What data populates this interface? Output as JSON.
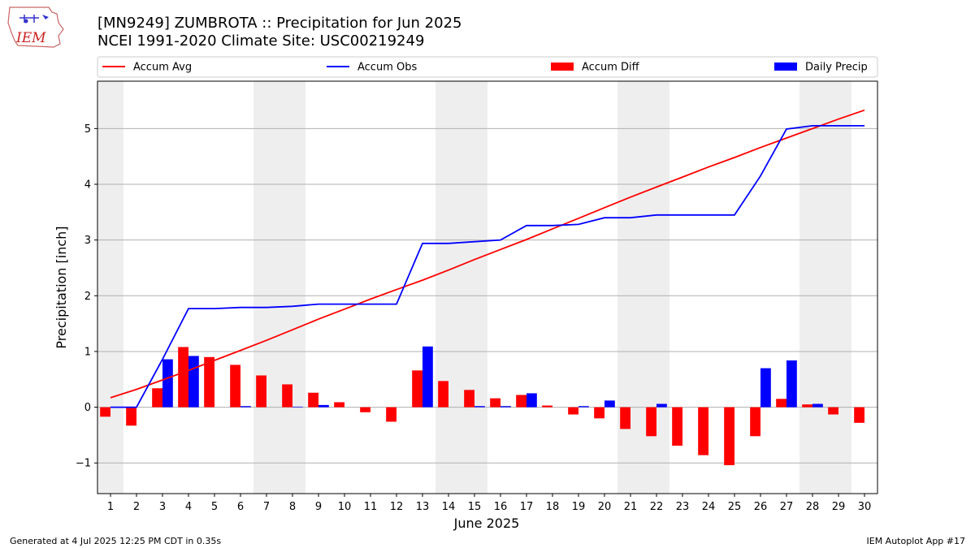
{
  "header": {
    "title_line1": "[MN9249] ZUMBROTA :: Precipitation for Jun 2025",
    "title_line2": "NCEI 1991-2020 Climate Site: USC00219249"
  },
  "logo": {
    "text": "IEM"
  },
  "footer": {
    "left": "Generated at 4 Jul 2025 12:25 PM CDT in 0.35s",
    "right": "IEM Autoplot App #17"
  },
  "colors": {
    "avg": "#ff0000",
    "obs": "#0000ff",
    "diff": "#ff0000",
    "daily": "#0000ff",
    "weekend": "#eeeeee"
  },
  "chart_data": {
    "type": "bar",
    "xlabel": "June 2025",
    "ylabel": "Precipitation [inch]",
    "ylim": [
      -1.55,
      5.85
    ],
    "yticks": [
      -1,
      0,
      1,
      2,
      3,
      4,
      5
    ],
    "ytick_labels": [
      "−1",
      "0",
      "1",
      "2",
      "3",
      "4",
      "5"
    ],
    "grid": true,
    "legend_placement": "top",
    "x": [
      1,
      2,
      3,
      4,
      5,
      6,
      7,
      8,
      9,
      10,
      11,
      12,
      13,
      14,
      15,
      16,
      17,
      18,
      19,
      20,
      21,
      22,
      23,
      24,
      25,
      26,
      27,
      28,
      29,
      30
    ],
    "shaded_days": [
      1,
      7,
      8,
      14,
      15,
      21,
      22,
      28,
      29
    ],
    "series": [
      {
        "name": "Accum Avg",
        "kind": "line",
        "values": [
          0.17,
          0.32,
          0.49,
          0.66,
          0.84,
          1.02,
          1.2,
          1.39,
          1.58,
          1.76,
          1.94,
          2.11,
          2.28,
          2.46,
          2.65,
          2.83,
          3.01,
          3.2,
          3.39,
          3.58,
          3.77,
          3.95,
          4.13,
          4.31,
          4.48,
          4.66,
          4.83,
          5.0,
          5.17,
          5.33
        ]
      },
      {
        "name": "Accum Obs",
        "kind": "line",
        "values": [
          0,
          0,
          0.86,
          1.77,
          1.77,
          1.79,
          1.79,
          1.81,
          1.85,
          1.85,
          1.85,
          1.85,
          2.94,
          2.94,
          2.97,
          3.0,
          3.26,
          3.26,
          3.28,
          3.4,
          3.4,
          3.45,
          3.45,
          3.45,
          3.45,
          4.15,
          4.99,
          5.05,
          5.05,
          5.05
        ]
      },
      {
        "name": "Accum Diff",
        "kind": "bar",
        "values": [
          -0.17,
          -0.33,
          0.34,
          1.08,
          0.9,
          0.76,
          0.57,
          0.41,
          0.26,
          0.09,
          -0.09,
          -0.26,
          0.66,
          0.47,
          0.31,
          0.16,
          0.22,
          0.03,
          -0.13,
          -0.2,
          -0.39,
          -0.52,
          -0.69,
          -0.86,
          -1.04,
          -0.52,
          0.15,
          0.05,
          -0.13,
          -0.28
        ]
      },
      {
        "name": "Daily Precip",
        "kind": "bar",
        "values": [
          0,
          0,
          0.86,
          0.92,
          0,
          0.02,
          0,
          0.01,
          0.04,
          0,
          0,
          0,
          1.09,
          0,
          0.02,
          0.02,
          0.25,
          0,
          0.02,
          0.12,
          0,
          0.06,
          0,
          0,
          0,
          0.7,
          0.84,
          0.06,
          0,
          0
        ]
      }
    ]
  }
}
